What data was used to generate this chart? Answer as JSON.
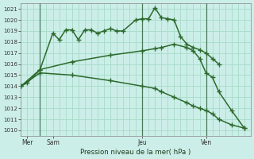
{
  "background_color": "#cceee8",
  "grid_color": "#aaddcc",
  "line_color": "#2d6a2d",
  "title": "Pression niveau de la mer( hPa )",
  "ylabel_values": [
    1010,
    1011,
    1012,
    1013,
    1014,
    1015,
    1016,
    1017,
    1018,
    1019,
    1020,
    1021
  ],
  "ylim": [
    1009.5,
    1021.5
  ],
  "xlim": [
    0,
    36
  ],
  "xtick_positions": [
    1,
    5,
    19,
    29
  ],
  "xtick_labels": [
    "Mer",
    "Sam",
    "Jeu",
    "Ven"
  ],
  "vline_positions": [
    3,
    19,
    29
  ],
  "series1": {
    "x": [
      0,
      1,
      3,
      5,
      6,
      7,
      8,
      9,
      10,
      11,
      12,
      13,
      14,
      15,
      16,
      18,
      19,
      20,
      21,
      22,
      23,
      24,
      25,
      26,
      27,
      28,
      29,
      30,
      31
    ],
    "y": [
      1014.0,
      1014.3,
      1015.5,
      1018.8,
      1018.2,
      1019.1,
      1019.1,
      1018.2,
      1019.1,
      1019.1,
      1018.8,
      1019.0,
      1019.2,
      1019.0,
      1019.0,
      1020.0,
      1020.1,
      1020.1,
      1021.1,
      1020.2,
      1020.1,
      1020.0,
      1018.5,
      1017.8,
      1017.5,
      1017.3,
      1017.0,
      1016.5,
      1016.0
    ]
  },
  "series2": {
    "x": [
      0,
      3,
      8,
      14,
      19,
      21,
      22,
      24,
      26,
      27,
      28,
      29,
      30,
      31,
      33,
      35
    ],
    "y": [
      1014.0,
      1015.5,
      1016.2,
      1016.8,
      1017.2,
      1017.4,
      1017.5,
      1017.8,
      1017.5,
      1017.2,
      1016.5,
      1015.2,
      1014.8,
      1013.5,
      1011.8,
      1010.2
    ]
  },
  "series3": {
    "x": [
      0,
      3,
      8,
      14,
      19,
      21,
      22,
      24,
      26,
      27,
      28,
      29,
      30,
      31,
      33,
      35
    ],
    "y": [
      1014.0,
      1015.2,
      1015.0,
      1014.5,
      1014.0,
      1013.8,
      1013.5,
      1013.0,
      1012.5,
      1012.2,
      1012.0,
      1011.8,
      1011.5,
      1011.0,
      1010.5,
      1010.2
    ]
  }
}
